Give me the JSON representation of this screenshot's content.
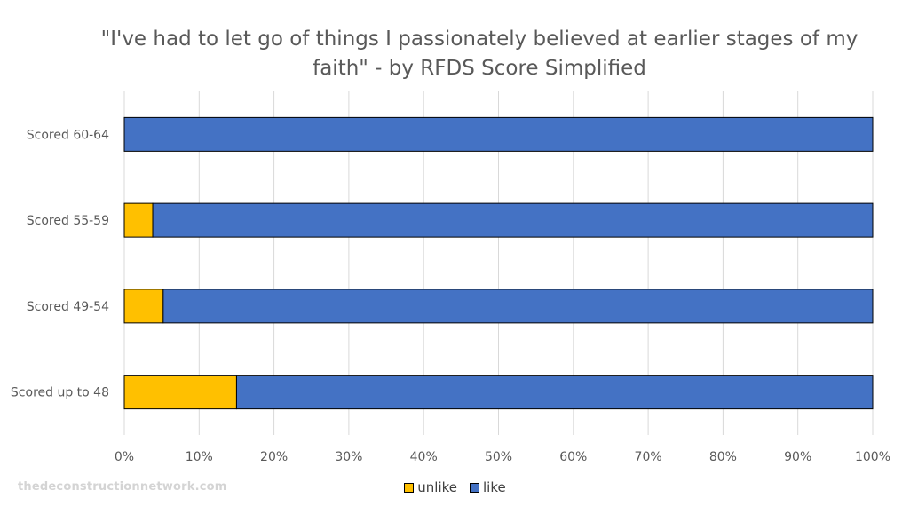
{
  "chart_data": {
    "type": "bar",
    "orientation": "horizontal",
    "stacked": "percent",
    "title": "\"I've had to let go of things I passionately believed at earlier stages of my faith\" - by RFDS Score Simplified",
    "categories": [
      "Scored 60-64",
      "Scored 55-59",
      "Scored 49-54",
      "Scored up to 48"
    ],
    "series": [
      {
        "name": "unlike",
        "color": "#ffc000",
        "values": [
          0,
          3.8,
          5.2,
          15
        ]
      },
      {
        "name": "like",
        "color": "#4472c4",
        "values": [
          100,
          96.2,
          94.8,
          85
        ]
      }
    ],
    "x_ticks": [
      "0%",
      "10%",
      "20%",
      "30%",
      "40%",
      "50%",
      "60%",
      "70%",
      "80%",
      "90%",
      "100%"
    ],
    "xlim": [
      0,
      100
    ],
    "grid": true,
    "legend_position": "bottom"
  },
  "watermark": "thedeconstructionnetwork.com"
}
